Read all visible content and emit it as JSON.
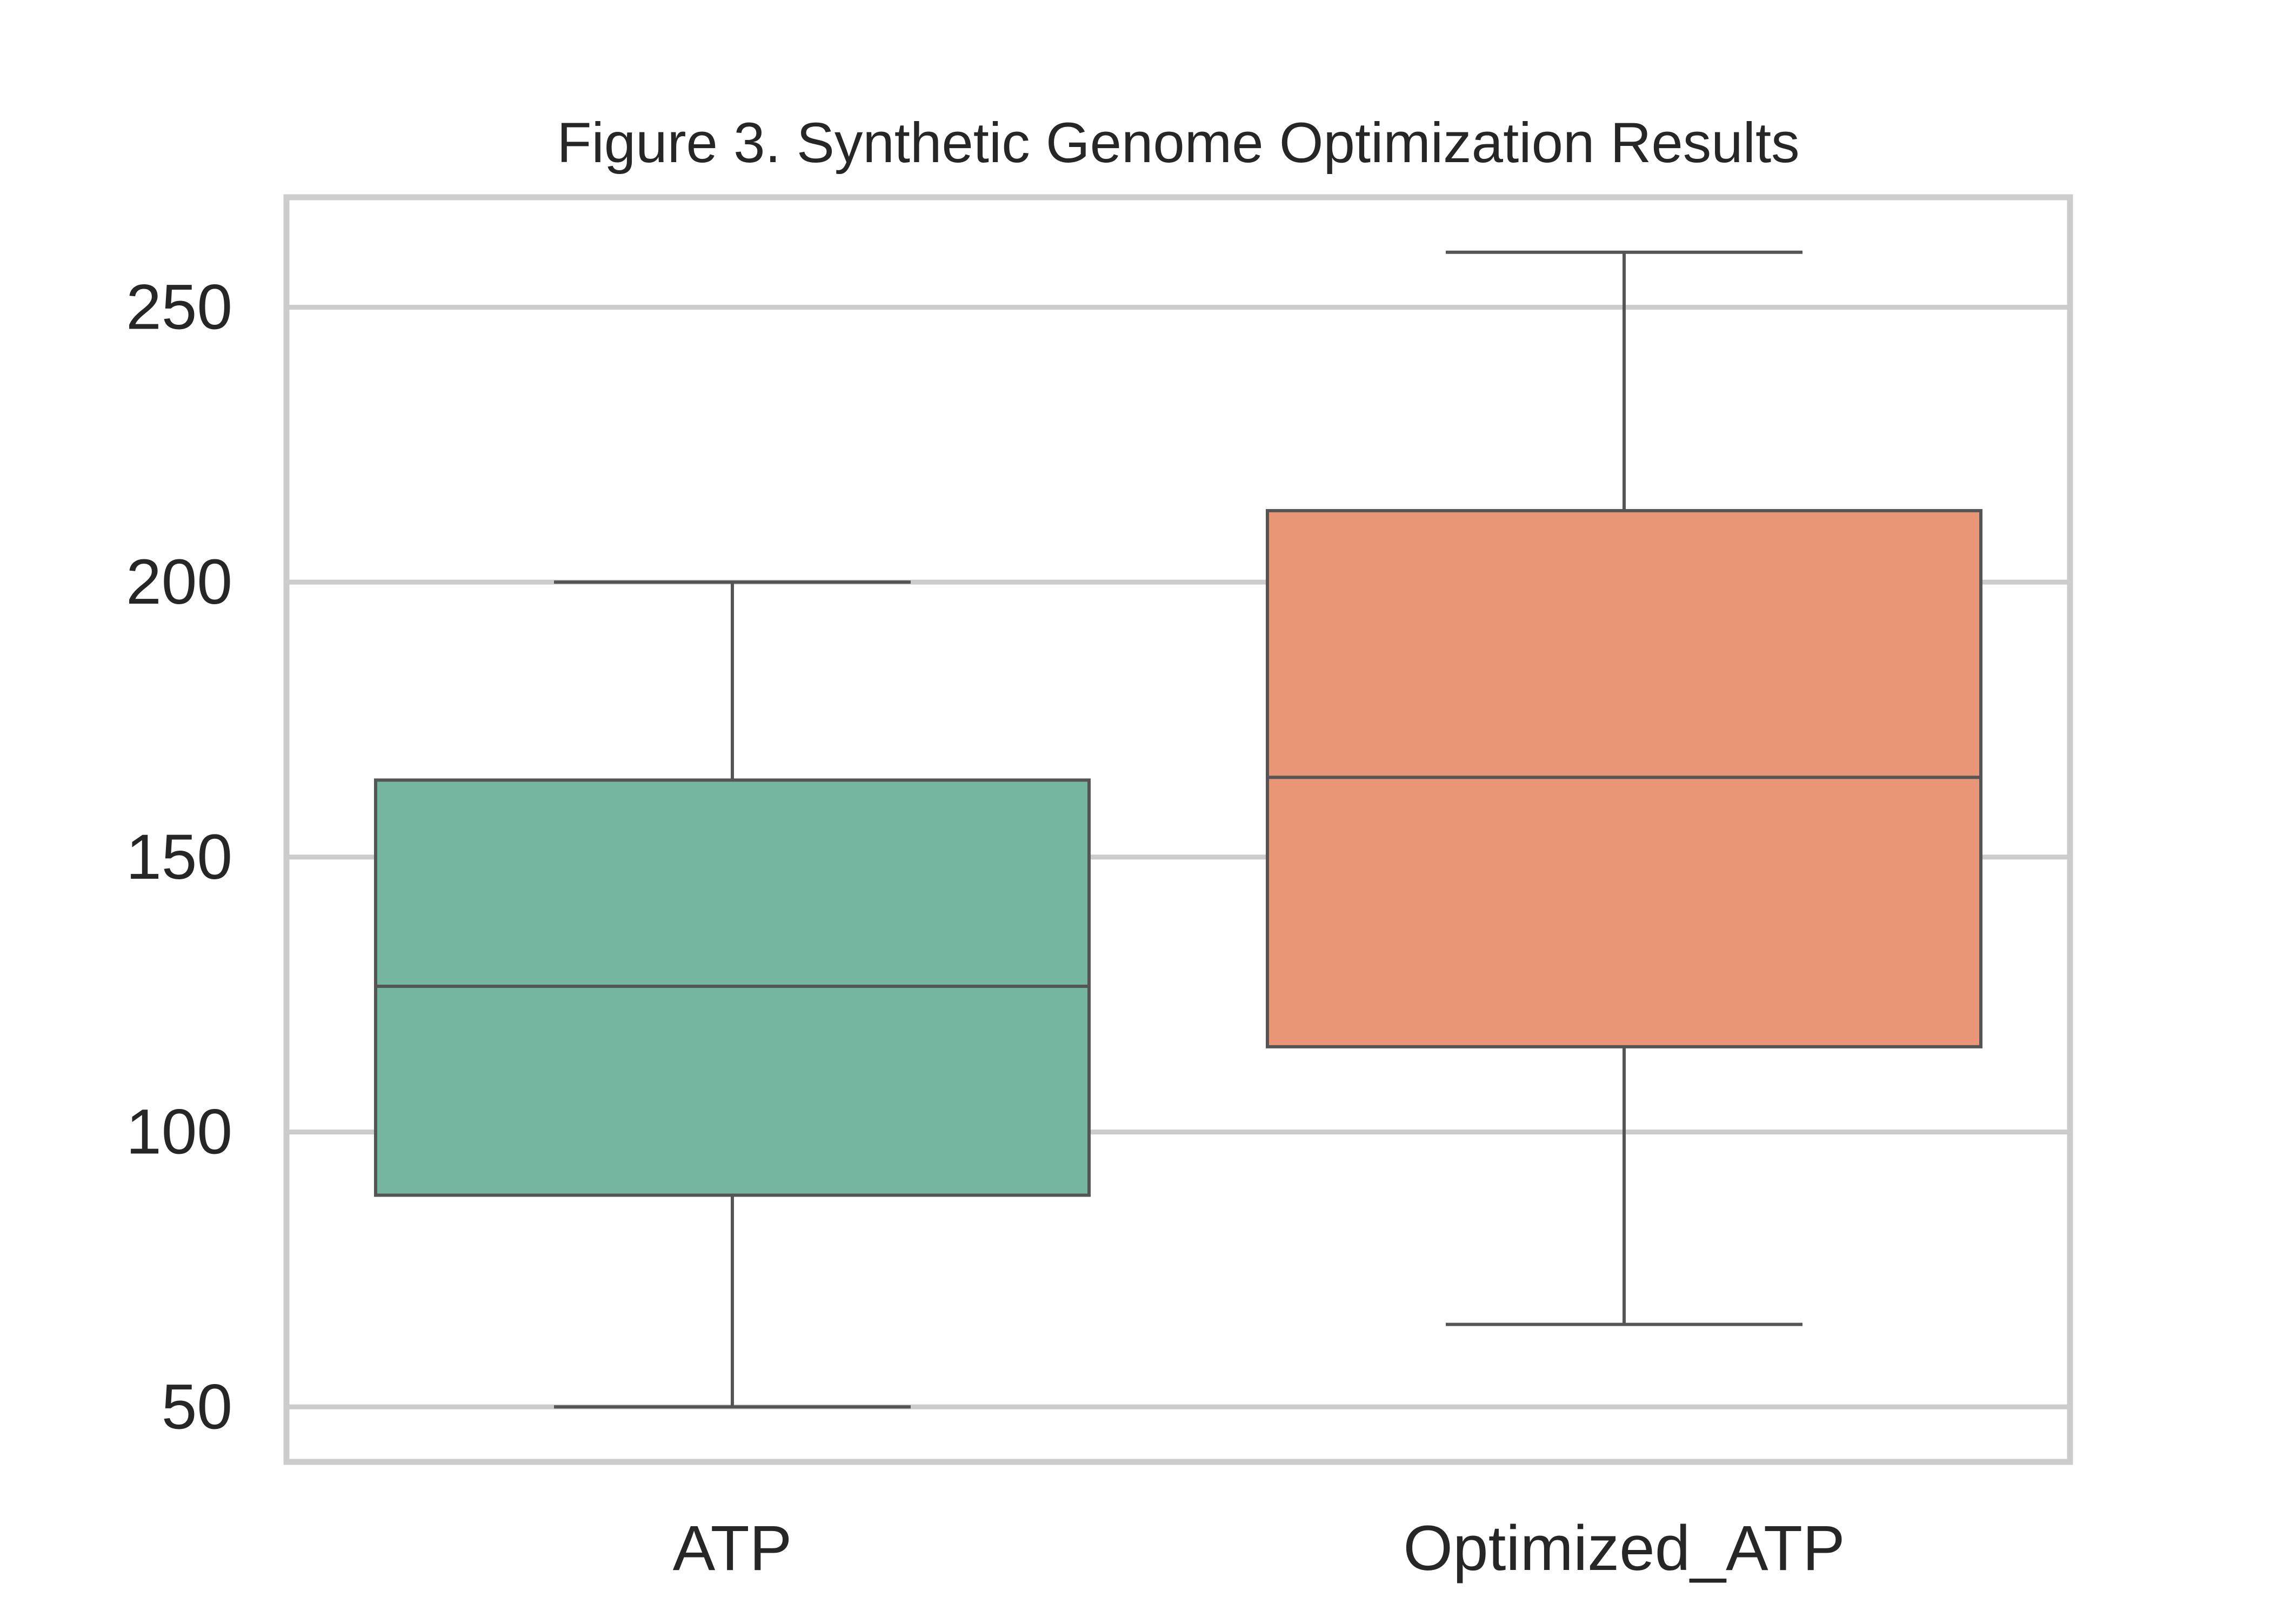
{
  "chart_data": {
    "type": "box",
    "title": "Figure 3. Synthetic Genome Optimization Results",
    "xlabel": "",
    "ylabel": "",
    "categories": [
      "ATP",
      "Optimized_ATP"
    ],
    "boxes": [
      {
        "category": "ATP",
        "whisker_low": 50,
        "q1": 88.5,
        "median": 126.5,
        "q3": 164,
        "whisker_high": 200,
        "color": "#75b6a1"
      },
      {
        "category": "Optimized_ATP",
        "whisker_low": 65,
        "q1": 115.5,
        "median": 164.5,
        "q3": 213,
        "whisker_high": 260,
        "color": "#e89675"
      }
    ],
    "ylim": [
      40,
      270
    ],
    "yticks": [
      50,
      100,
      150,
      200,
      250
    ],
    "grid": "horizontal",
    "legend": "none",
    "colors": {
      "grid": "#cccccc",
      "frame": "#cccccc",
      "box_edge": "#555555",
      "text": "#262626",
      "background": "#ffffff"
    }
  }
}
